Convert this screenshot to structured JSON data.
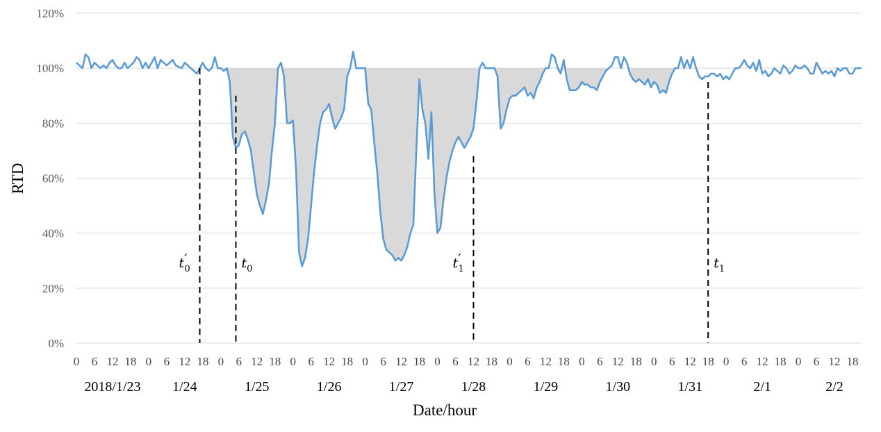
{
  "chart_data": {
    "type": "area",
    "ylabel": "RTD",
    "xlabel": "Date/hour",
    "ylim": [
      0,
      1.2
    ],
    "y_ticks": [
      {
        "value": 0,
        "label": "0%"
      },
      {
        "value": 0.2,
        "label": "20%"
      },
      {
        "value": 0.4,
        "label": "40%"
      },
      {
        "value": 0.6,
        "label": "60%"
      },
      {
        "value": 0.8,
        "label": "80%"
      },
      {
        "value": 1.0,
        "label": "100%"
      },
      {
        "value": 1.2,
        "label": "120%"
      }
    ],
    "x_unit": "hours since 2018/1/23 0:00",
    "xlim": [
      0,
      261
    ],
    "grid": true,
    "days": [
      {
        "label": "2018/1/23",
        "start": 0
      },
      {
        "label": "1/24",
        "start": 24
      },
      {
        "label": "1/25",
        "start": 48
      },
      {
        "label": "1/26",
        "start": 72
      },
      {
        "label": "1/27",
        "start": 96
      },
      {
        "label": "1/28",
        "start": 120
      },
      {
        "label": "1/29",
        "start": 144
      },
      {
        "label": "1/30",
        "start": 168
      },
      {
        "label": "1/31",
        "start": 192
      },
      {
        "label": "2/1",
        "start": 216
      },
      {
        "label": "2/2",
        "start": 240
      }
    ],
    "hour_ticks": [
      "0",
      "6",
      "12",
      "18"
    ],
    "series": [
      {
        "color": "#5b9bd5",
        "fill_color": "#d9d9d9",
        "fill_reference": 1.0,
        "points": [
          [
            0,
            1.02
          ],
          [
            2,
            1.0
          ],
          [
            3,
            1.05
          ],
          [
            4,
            1.04
          ],
          [
            5,
            1.0
          ],
          [
            6,
            1.02
          ],
          [
            7,
            1.01
          ],
          [
            8,
            1.0
          ],
          [
            9,
            1.01
          ],
          [
            10,
            1.0
          ],
          [
            11,
            1.02
          ],
          [
            12,
            1.03
          ],
          [
            13,
            1.01
          ],
          [
            14,
            1.0
          ],
          [
            15,
            1.0
          ],
          [
            16,
            1.02
          ],
          [
            17,
            1.0
          ],
          [
            18,
            1.01
          ],
          [
            19,
            1.02
          ],
          [
            20,
            1.04
          ],
          [
            21,
            1.03
          ],
          [
            22,
            1.0
          ],
          [
            23,
            1.02
          ],
          [
            24,
            1.0
          ],
          [
            26,
            1.04
          ],
          [
            27,
            1.0
          ],
          [
            28,
            1.03
          ],
          [
            29,
            1.02
          ],
          [
            30,
            1.01
          ],
          [
            31,
            1.02
          ],
          [
            32,
            1.03
          ],
          [
            33,
            1.01
          ],
          [
            35,
            1.0
          ],
          [
            36,
            1.02
          ],
          [
            37,
            1.01
          ],
          [
            39,
            0.99
          ],
          [
            40,
            0.98
          ],
          [
            41,
            1.0
          ],
          [
            42,
            1.02
          ],
          [
            43,
            1.0
          ],
          [
            44,
            0.99
          ],
          [
            45,
            1.0
          ],
          [
            46,
            1.04
          ],
          [
            47,
            1.0
          ],
          [
            48,
            1.0
          ],
          [
            49,
            0.99
          ],
          [
            50,
            1.0
          ],
          [
            51,
            0.95
          ],
          [
            52,
            0.75
          ],
          [
            53,
            0.71
          ],
          [
            54,
            0.72
          ],
          [
            55,
            0.76
          ],
          [
            56,
            0.77
          ],
          [
            57,
            0.74
          ],
          [
            58,
            0.7
          ],
          [
            59,
            0.62
          ],
          [
            60,
            0.54
          ],
          [
            61,
            0.5
          ],
          [
            62,
            0.47
          ],
          [
            63,
            0.52
          ],
          [
            64,
            0.58
          ],
          [
            65,
            0.7
          ],
          [
            66,
            0.8
          ],
          [
            67,
            1.0
          ],
          [
            68,
            1.02
          ],
          [
            69,
            0.97
          ],
          [
            70,
            0.8
          ],
          [
            71,
            0.8
          ],
          [
            72,
            0.81
          ],
          [
            73,
            0.63
          ],
          [
            74,
            0.33
          ],
          [
            75,
            0.28
          ],
          [
            76,
            0.31
          ],
          [
            77,
            0.38
          ],
          [
            78,
            0.5
          ],
          [
            79,
            0.62
          ],
          [
            80,
            0.72
          ],
          [
            81,
            0.8
          ],
          [
            82,
            0.84
          ],
          [
            83,
            0.85
          ],
          [
            84,
            0.87
          ],
          [
            85,
            0.82
          ],
          [
            86,
            0.78
          ],
          [
            87,
            0.8
          ],
          [
            88,
            0.82
          ],
          [
            89,
            0.85
          ],
          [
            90,
            0.97
          ],
          [
            91,
            1.0
          ],
          [
            92,
            1.06
          ],
          [
            93,
            1.0
          ],
          [
            94,
            1.0
          ],
          [
            95,
            1.0
          ],
          [
            96,
            1.0
          ],
          [
            97,
            0.87
          ],
          [
            98,
            0.85
          ],
          [
            99,
            0.73
          ],
          [
            100,
            0.62
          ],
          [
            101,
            0.48
          ],
          [
            102,
            0.38
          ],
          [
            103,
            0.34
          ],
          [
            104,
            0.33
          ],
          [
            105,
            0.32
          ],
          [
            106,
            0.3
          ],
          [
            107,
            0.31
          ],
          [
            108,
            0.3
          ],
          [
            109,
            0.32
          ],
          [
            110,
            0.35
          ],
          [
            111,
            0.4
          ],
          [
            112,
            0.43
          ],
          [
            113,
            0.7
          ],
          [
            114,
            0.96
          ],
          [
            115,
            0.85
          ],
          [
            116,
            0.8
          ],
          [
            117,
            0.67
          ],
          [
            118,
            0.84
          ],
          [
            119,
            0.55
          ],
          [
            120,
            0.4
          ],
          [
            121,
            0.42
          ],
          [
            122,
            0.52
          ],
          [
            123,
            0.6
          ],
          [
            124,
            0.66
          ],
          [
            125,
            0.7
          ],
          [
            126,
            0.73
          ],
          [
            127,
            0.75
          ],
          [
            128,
            0.73
          ],
          [
            129,
            0.71
          ],
          [
            130,
            0.73
          ],
          [
            131,
            0.75
          ],
          [
            132,
            0.78
          ],
          [
            133,
            0.88
          ],
          [
            134,
            1.0
          ],
          [
            135,
            1.02
          ],
          [
            136,
            1.0
          ],
          [
            137,
            1.0
          ],
          [
            138,
            1.0
          ],
          [
            139,
            1.0
          ],
          [
            140,
            0.97
          ],
          [
            141,
            0.78
          ],
          [
            142,
            0.8
          ],
          [
            143,
            0.85
          ],
          [
            144,
            0.89
          ],
          [
            145,
            0.9
          ],
          [
            146,
            0.9
          ],
          [
            147,
            0.91
          ],
          [
            148,
            0.92
          ],
          [
            149,
            0.93
          ],
          [
            150,
            0.9
          ],
          [
            151,
            0.91
          ],
          [
            152,
            0.89
          ],
          [
            153,
            0.93
          ],
          [
            154,
            0.95
          ],
          [
            155,
            0.98
          ],
          [
            156,
            1.0
          ],
          [
            157,
            1.0
          ],
          [
            158,
            1.05
          ],
          [
            159,
            1.04
          ],
          [
            160,
            1.0
          ],
          [
            161,
            0.98
          ],
          [
            162,
            1.03
          ],
          [
            163,
            0.96
          ],
          [
            164,
            0.92
          ],
          [
            165,
            0.92
          ],
          [
            166,
            0.92
          ],
          [
            167,
            0.93
          ],
          [
            168,
            0.95
          ],
          [
            169,
            0.94
          ],
          [
            170,
            0.94
          ],
          [
            171,
            0.93
          ],
          [
            172,
            0.93
          ],
          [
            173,
            0.92
          ],
          [
            174,
            0.95
          ],
          [
            175,
            0.97
          ],
          [
            176,
            0.99
          ],
          [
            177,
            1.0
          ],
          [
            178,
            1.01
          ],
          [
            179,
            1.04
          ],
          [
            180,
            1.04
          ],
          [
            181,
            1.0
          ],
          [
            182,
            1.04
          ],
          [
            183,
            1.02
          ],
          [
            184,
            0.98
          ],
          [
            185,
            0.96
          ],
          [
            186,
            0.95
          ],
          [
            187,
            0.96
          ],
          [
            188,
            0.95
          ],
          [
            189,
            0.94
          ],
          [
            190,
            0.96
          ],
          [
            191,
            0.93
          ],
          [
            192,
            0.95
          ],
          [
            193,
            0.94
          ],
          [
            194,
            0.91
          ],
          [
            195,
            0.92
          ],
          [
            196,
            0.91
          ],
          [
            197,
            0.95
          ],
          [
            198,
            0.98
          ],
          [
            199,
            1.0
          ],
          [
            200,
            1.0
          ],
          [
            201,
            1.04
          ],
          [
            202,
            1.0
          ],
          [
            203,
            1.03
          ],
          [
            204,
            1.0
          ],
          [
            205,
            1.04
          ],
          [
            206,
            1.0
          ],
          [
            207,
            0.97
          ],
          [
            208,
            0.96
          ],
          [
            209,
            0.97
          ],
          [
            210,
            0.97
          ],
          [
            211,
            0.98
          ],
          [
            212,
            0.98
          ],
          [
            213,
            0.97
          ],
          [
            214,
            0.98
          ],
          [
            215,
            0.96
          ],
          [
            216,
            0.97
          ],
          [
            217,
            0.96
          ],
          [
            218,
            0.98
          ],
          [
            219,
            1.0
          ],
          [
            220,
            1.0
          ],
          [
            221,
            1.01
          ],
          [
            222,
            1.03
          ],
          [
            223,
            1.01
          ],
          [
            224,
            1.0
          ],
          [
            225,
            1.02
          ],
          [
            226,
            0.99
          ],
          [
            227,
            1.03
          ],
          [
            228,
            0.98
          ],
          [
            229,
            0.99
          ],
          [
            230,
            0.97
          ],
          [
            231,
            0.98
          ],
          [
            232,
            1.0
          ],
          [
            233,
            0.99
          ],
          [
            234,
            0.98
          ],
          [
            235,
            1.01
          ],
          [
            236,
            1.0
          ],
          [
            237,
            0.98
          ],
          [
            238,
            0.99
          ],
          [
            239,
            1.01
          ],
          [
            240,
            1.0
          ],
          [
            241,
            1.0
          ],
          [
            242,
            1.01
          ],
          [
            243,
            1.0
          ],
          [
            244,
            0.98
          ],
          [
            245,
            0.98
          ],
          [
            246,
            1.02
          ],
          [
            247,
            1.0
          ],
          [
            248,
            0.98
          ],
          [
            249,
            0.99
          ],
          [
            250,
            0.98
          ],
          [
            251,
            0.99
          ],
          [
            252,
            0.97
          ],
          [
            253,
            1.0
          ],
          [
            254,
            0.99
          ],
          [
            255,
            1.0
          ],
          [
            256,
            1.0
          ],
          [
            257,
            0.98
          ],
          [
            258,
            0.98
          ],
          [
            259,
            1.0
          ],
          [
            260,
            1.0
          ],
          [
            261,
            1.0
          ]
        ]
      }
    ],
    "shaded_intervals": [
      [
        50,
        205
      ]
    ],
    "markers": [
      {
        "label": "t",
        "sup": "′",
        "sub": "0",
        "x": 41,
        "top": 1.0
      },
      {
        "label": "t",
        "sup": "",
        "sub": "0",
        "x": 53,
        "top": 0.9
      },
      {
        "label": "t",
        "sup": "′",
        "sub": "1",
        "x": 132,
        "top": 0.68
      },
      {
        "label": "t",
        "sup": "",
        "sub": "1",
        "x": 210,
        "top": 0.95
      }
    ],
    "colors": {
      "line": "#5b9bd5",
      "fill": "#d9d9d9",
      "grid": "#d9d9d9",
      "marker": "#000000"
    }
  }
}
